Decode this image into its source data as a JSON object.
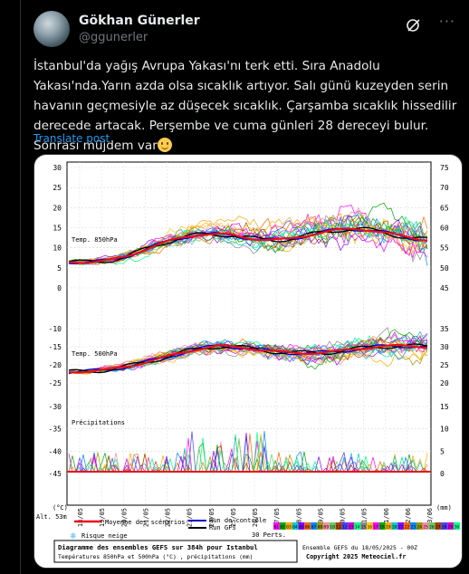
{
  "post": {
    "author_name": "Gökhan Günerler",
    "author_handle": "@ggunerler",
    "text": "İstanbul'da yağış Avrupa Yakası'nı terk etti. Sıra Anadolu Yakası'nda.Yarın azda olsa sıcaklık artıyor. Salı günü kuzeyden serin havanın geçmesiyle az düşecek sıcaklık. Çarşamba sıcaklık hissedilir derecede artacak. Perşembe ve cuma günleri 28 dereceyi bulur. Sonrası müjdem var",
    "translate_label": "Translate post",
    "icons": [
      "avatar",
      "grok-icon",
      "more-icon",
      "smile-emoji"
    ]
  },
  "chart_data": {
    "type": "line",
    "panels": [
      {
        "label": "Temp. 850hPa",
        "left_axis": [
          30,
          25,
          20,
          15,
          10,
          5,
          0
        ],
        "right_axis": [
          75,
          70,
          65,
          60,
          55,
          50,
          45
        ]
      },
      {
        "label": "Temp. 500hPa",
        "left_axis": [
          -10,
          -15,
          -20,
          -25
        ],
        "right_axis": [
          35,
          30,
          25,
          20
        ]
      },
      {
        "label": "Précipitations",
        "left_axis": [
          -30,
          -35,
          -40,
          -45
        ],
        "right_axis": [
          15,
          10,
          5,
          0
        ]
      }
    ],
    "left_unit": "(°C)",
    "right_unit": "(mm)",
    "altitude": "Alt. 53m",
    "x_ticks": [
      "18/05",
      "19/05",
      "20/05",
      "21/05",
      "22/05",
      "23/05",
      "24/05",
      "25/05",
      "26/05",
      "27/05",
      "28/05",
      "29/05",
      "30/05",
      "31/05",
      "01/06",
      "02/06",
      "03/06"
    ],
    "series": [
      {
        "name": "Moyenne des scénarios",
        "color": "#e8101a"
      },
      {
        "name": "Run de contrôle",
        "color": "#0000cc"
      },
      {
        "name": "Run GFS",
        "color": "#000000"
      },
      {
        "name": "30 Perts.",
        "color": "#888888"
      }
    ],
    "risk_label": "Risque neige",
    "perts_numbers": [
      "01",
      "02",
      "03",
      "04",
      "05",
      "06",
      "07",
      "08",
      "09",
      "10",
      "11",
      "12",
      "13",
      "14",
      "15",
      "16",
      "17",
      "18",
      "19",
      "20",
      "21",
      "22",
      "23",
      "24",
      "25",
      "26",
      "27",
      "28",
      "29",
      "30"
    ],
    "footer_title": "Diagramme des ensembles GEFS sur 384h pour Istanbul",
    "footer_subtitle": "Températures 850hPa et 500hPa (°C) , précipitations (mm)",
    "footer_ensemble": "Ensemble GEFS du 18/05/2025 - 00Z",
    "footer_copyright": "Copyright 2025 Meteociel.fr"
  }
}
